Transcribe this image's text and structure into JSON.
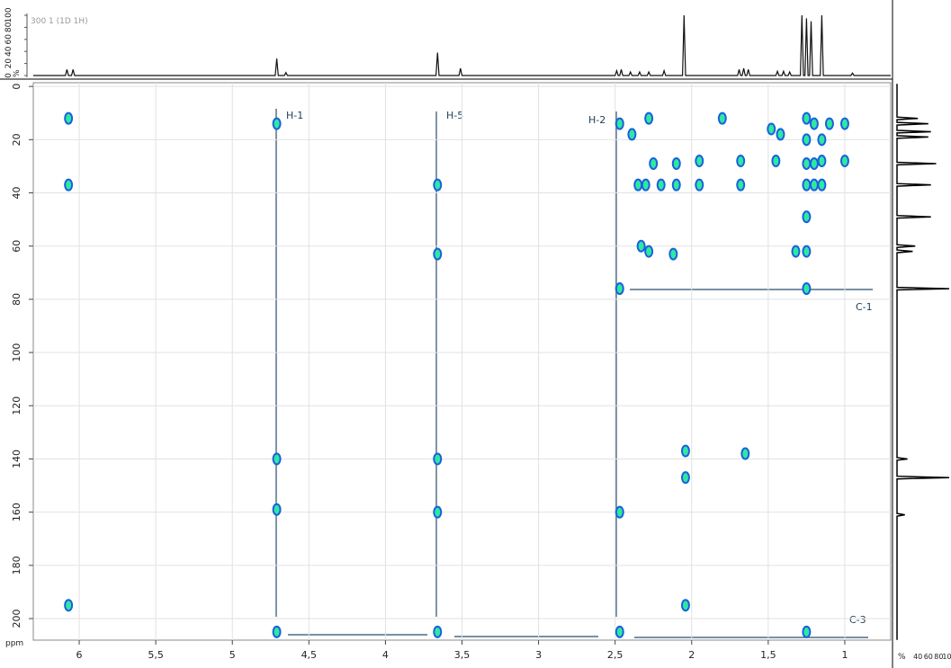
{
  "chart_data": [
    {
      "type": "line",
      "title": "300 1 (1D 1H)",
      "ylabel": "%",
      "color": "#111111",
      "xlim": [
        6.3,
        0.7
      ],
      "ylim": [
        0,
        100
      ],
      "yticks": [
        0,
        20,
        40,
        60,
        80,
        100
      ],
      "x": [
        6.3,
        6.09,
        6.08,
        6.07,
        6.05,
        6.04,
        6.03,
        4.72,
        4.71,
        4.7,
        4.66,
        4.65,
        4.64,
        3.67,
        3.66,
        3.65,
        3.52,
        3.51,
        3.5,
        2.5,
        2.49,
        2.48,
        2.47,
        2.46,
        2.45,
        2.41,
        2.4,
        2.39,
        2.35,
        2.34,
        2.33,
        2.29,
        2.28,
        2.27,
        2.19,
        2.18,
        2.17,
        2.06,
        2.05,
        2.04,
        1.7,
        1.69,
        1.68,
        1.67,
        1.66,
        1.65,
        1.64,
        1.63,
        1.62,
        1.45,
        1.44,
        1.43,
        1.41,
        1.4,
        1.39,
        1.37,
        1.36,
        1.35,
        1.29,
        1.28,
        1.27,
        1.26,
        1.25,
        1.24,
        1.23,
        1.22,
        1.21,
        1.16,
        1.15,
        1.14,
        0.96,
        0.95,
        0.94,
        0.7
      ],
      "values": [
        0,
        0,
        10,
        0,
        0,
        10,
        0,
        0,
        28,
        0,
        0,
        5,
        0,
        0,
        38,
        0,
        0,
        12,
        0,
        0,
        8,
        0,
        0,
        10,
        0,
        0,
        6,
        0,
        0,
        6,
        0,
        0,
        6,
        0,
        0,
        8,
        0,
        0,
        100,
        0,
        0,
        10,
        0,
        0,
        12,
        0,
        0,
        10,
        0,
        0,
        7,
        0,
        0,
        7,
        0,
        0,
        6,
        0,
        0,
        100,
        0,
        0,
        95,
        0,
        0,
        90,
        0,
        0,
        100,
        0,
        0,
        4,
        0,
        0
      ]
    },
    {
      "type": "scatter",
      "xlabel": "ppm",
      "color": "#1a5fe0",
      "core_color": "#2fe8a0",
      "grid": true,
      "annotations": [
        "H-1",
        "H-5",
        "H-2",
        "C-1",
        "C-3"
      ],
      "xlim": [
        6.3,
        0.7
      ],
      "ylim": [
        -1.4,
        208.1
      ],
      "xticks": [
        6,
        {
          "value": 5.5,
          "label": "5,5"
        },
        5,
        {
          "value": 4.5,
          "label": "4,5"
        },
        4,
        {
          "value": 3.5,
          "label": "3,5"
        },
        3,
        {
          "value": 2.5,
          "label": "2,5"
        },
        2,
        {
          "value": 1.5,
          "label": "1,5"
        },
        1
      ],
      "yticks": [
        0,
        20,
        40,
        60,
        80,
        100,
        120,
        140,
        160,
        180,
        200
      ],
      "x": [
        6.07,
        6.07,
        6.07,
        4.71,
        4.71,
        4.71,
        4.71,
        3.66,
        3.66,
        3.66,
        3.66,
        3.66,
        2.47,
        2.47,
        2.47,
        2.47,
        2.39,
        2.28,
        2.35,
        2.3,
        2.2,
        2.1,
        1.95,
        2.25,
        2.1,
        1.95,
        2.33,
        2.28,
        2.12,
        2.04,
        2.04,
        2.04,
        1.65,
        1.68,
        1.68,
        1.8,
        1.25,
        1.25,
        1.25,
        1.25,
        1.25,
        1.25,
        1.25,
        1.25,
        1.2,
        1.2,
        1.2,
        1.15,
        1.15,
        1.15,
        1.32,
        1.1,
        1.0,
        1.0,
        1.45,
        1.48,
        1.42
      ],
      "y": [
        12,
        37,
        195,
        14,
        140,
        159,
        205,
        37,
        63,
        140,
        160,
        205,
        14,
        76,
        160,
        205,
        18,
        12,
        37,
        37,
        37,
        37,
        37,
        29,
        29,
        28,
        60,
        62,
        63,
        137,
        147,
        195,
        138,
        28,
        37,
        12,
        12,
        20,
        29,
        37,
        49,
        62,
        76,
        205,
        14,
        29,
        37,
        20,
        28,
        37,
        62,
        14,
        14,
        28,
        28,
        16,
        18
      ]
    },
    {
      "type": "projection",
      "xlabel": "%",
      "color": "#000000",
      "xlim": [
        0,
        100
      ],
      "xticks": [
        40,
        60,
        80,
        100
      ],
      "positions": [
        -1,
        11.5,
        12,
        12.5,
        13.5,
        14,
        14.5,
        16.5,
        17,
        17.5,
        18.5,
        19,
        19.5,
        28.5,
        29,
        29.5,
        36.5,
        37,
        37.5,
        48.5,
        49,
        49.5,
        59.5,
        60,
        60.5,
        61.5,
        62,
        62.5,
        75.5,
        76,
        76.5,
        139.5,
        140,
        140.5,
        146.5,
        147,
        147.5,
        160.5,
        161,
        161.5,
        208
      ],
      "values": [
        0,
        0,
        40,
        0,
        0,
        60,
        0,
        0,
        65,
        0,
        0,
        60,
        0,
        0,
        75,
        0,
        0,
        65,
        0,
        0,
        65,
        0,
        0,
        35,
        0,
        0,
        30,
        0,
        0,
        100,
        0,
        0,
        20,
        0,
        0,
        100,
        0,
        0,
        15,
        0,
        0
      ]
    }
  ]
}
